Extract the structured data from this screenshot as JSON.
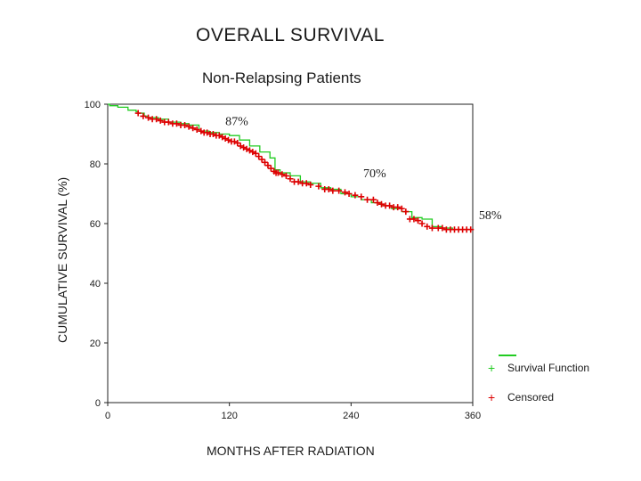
{
  "chart_data": {
    "type": "line",
    "title": "OVERALL SURVIVAL",
    "subtitle": "Non-Relapsing Patients",
    "xlabel": "MONTHS AFTER RADIATION",
    "ylabel": "CUMULATIVE SURVIVAL (%)",
    "xlim": [
      0,
      360
    ],
    "ylim": [
      0,
      100
    ],
    "xticks": [
      0,
      120,
      240,
      360
    ],
    "yticks": [
      0,
      20,
      40,
      60,
      80,
      100
    ],
    "grid": false,
    "legend_position": "bottom-right",
    "series": [
      {
        "name": "Survival Function",
        "color": "#22cc22",
        "x": [
          0,
          2,
          10,
          20,
          28,
          30,
          36,
          40,
          50,
          60,
          72,
          80,
          90,
          100,
          110,
          120,
          130,
          140,
          150,
          160,
          165,
          170,
          180,
          190,
          200,
          210,
          220,
          230,
          240,
          250,
          260,
          270,
          280,
          290,
          300,
          310,
          320,
          330,
          340,
          360
        ],
        "y": [
          100,
          99.5,
          99,
          98,
          97.5,
          97,
          96,
          95.5,
          95,
          94,
          93.5,
          93,
          91,
          90.5,
          90,
          89.5,
          88,
          86,
          84,
          82,
          78,
          77,
          76,
          74,
          73.5,
          72,
          71.5,
          70,
          69,
          68,
          67,
          66,
          65,
          64,
          62,
          61.5,
          59,
          58.5,
          58,
          58
        ]
      }
    ],
    "censored": {
      "name": "Censored",
      "color": "#dd0000",
      "x": [
        30,
        35,
        40,
        44,
        48,
        52,
        56,
        60,
        64,
        68,
        72,
        76,
        80,
        84,
        88,
        92,
        95,
        98,
        101,
        104,
        107,
        110,
        113,
        116,
        119,
        122,
        125,
        128,
        131,
        134,
        137,
        140,
        143,
        146,
        149,
        152,
        155,
        158,
        161,
        164,
        166,
        168,
        172,
        176,
        180,
        184,
        188,
        192,
        196,
        200,
        208,
        214,
        218,
        222,
        228,
        234,
        238,
        244,
        250,
        256,
        262,
        266,
        270,
        274,
        278,
        282,
        286,
        290,
        294,
        298,
        302,
        306,
        310,
        315,
        320,
        326,
        330,
        334,
        338,
        342,
        346,
        350,
        354,
        358
      ],
      "y": [
        97,
        96,
        95.5,
        95,
        95,
        94.5,
        94,
        94,
        93.5,
        93.5,
        93,
        93,
        92.5,
        92,
        91.5,
        91,
        90.5,
        90.5,
        90,
        90,
        89.5,
        89.5,
        89,
        88.5,
        88,
        87.5,
        87.5,
        87,
        86,
        85.5,
        85,
        84.5,
        84,
        83.5,
        82.5,
        81.5,
        80.5,
        79.5,
        78.5,
        77.5,
        77,
        77,
        76.5,
        76,
        75,
        74,
        74,
        73.5,
        73.5,
        73,
        72.5,
        71.5,
        71.5,
        71,
        71,
        70.5,
        70,
        69.5,
        69,
        68,
        68,
        67,
        66.5,
        66,
        66,
        65.5,
        65.5,
        65,
        64,
        61.5,
        61.5,
        61,
        60,
        59,
        58.5,
        58.5,
        58.5,
        58,
        58,
        58,
        58,
        58,
        58,
        58
      ]
    },
    "annotations": [
      {
        "text": "87%",
        "x": 116,
        "y": 93
      },
      {
        "text": "70%",
        "x": 252,
        "y": 75.5
      },
      {
        "text": "58%",
        "x": 366,
        "y": 61.5
      }
    ]
  },
  "legend": {
    "survival_label": "Survival Function",
    "censored_label": "Censored"
  }
}
